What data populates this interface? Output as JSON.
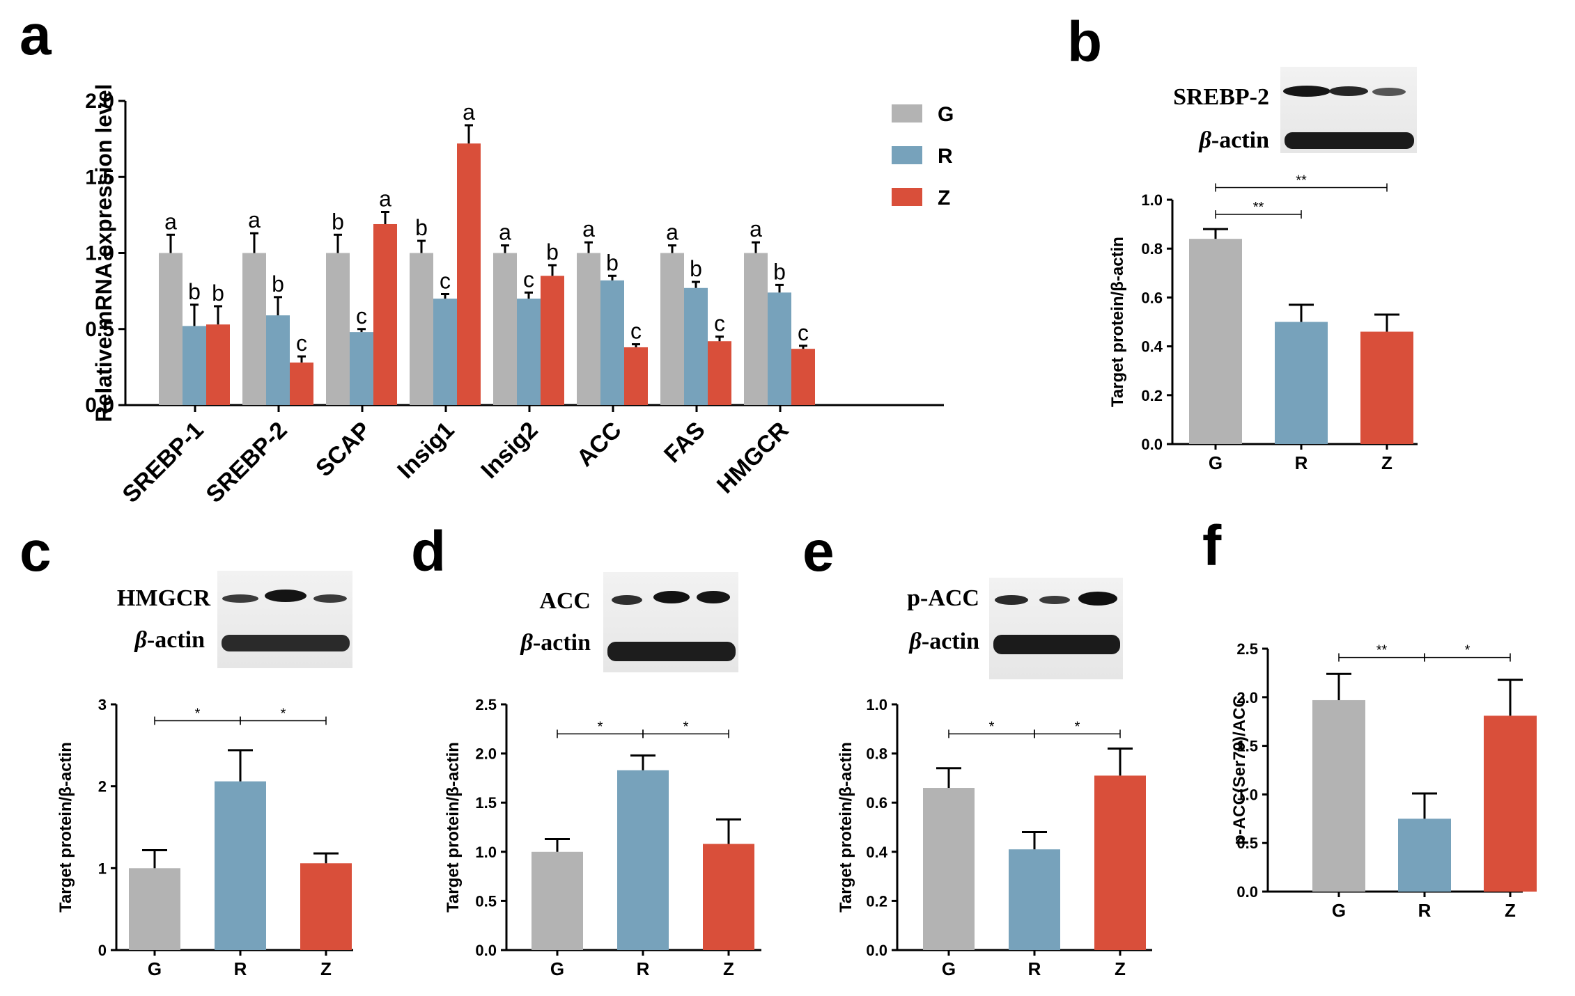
{
  "colors": {
    "G": "#b3b3b3",
    "R": "#77a2bb",
    "Z": "#d94f3a"
  },
  "panels": {
    "a": {
      "letter": "a"
    },
    "b": {
      "letter": "b"
    },
    "c": {
      "letter": "c"
    },
    "d": {
      "letter": "d"
    },
    "e": {
      "letter": "e"
    },
    "f": {
      "letter": "f"
    }
  },
  "blots": {
    "b": {
      "target": "SREBP-2",
      "ref_prefix": "β",
      "ref_suffix": "-actin"
    },
    "c": {
      "target": "HMGCR",
      "ref_prefix": "β",
      "ref_suffix": "-actin"
    },
    "d": {
      "target": "ACC",
      "ref_prefix": "β",
      "ref_suffix": "-actin"
    },
    "e": {
      "target": "p-ACC",
      "ref_prefix": "β",
      "ref_suffix": "-actin"
    }
  },
  "chart_data": [
    {
      "id": "a",
      "type": "bar",
      "ylabel": "Relative mRNA expression level",
      "ylim": [
        0,
        2.0
      ],
      "yticks": [
        "0.0",
        "0.5",
        "1.0",
        "1.5",
        "2.0"
      ],
      "categories": [
        "SREBP-1",
        "SREBP-2",
        "SCAP",
        "Insig1",
        "Insig2",
        "ACC",
        "FAS",
        "HMGCR"
      ],
      "legend": [
        "G",
        "R",
        "Z"
      ],
      "series": [
        {
          "name": "G",
          "values": [
            1.0,
            1.0,
            1.0,
            1.0,
            1.0,
            1.0,
            1.0,
            1.0
          ],
          "errors": [
            0.12,
            0.13,
            0.12,
            0.08,
            0.05,
            0.07,
            0.05,
            0.07
          ],
          "labels": [
            "a",
            "a",
            "b",
            "b",
            "a",
            "a",
            "a",
            "a"
          ]
        },
        {
          "name": "R",
          "values": [
            0.52,
            0.59,
            0.48,
            0.7,
            0.7,
            0.82,
            0.77,
            0.74
          ],
          "errors": [
            0.14,
            0.12,
            0.02,
            0.03,
            0.04,
            0.03,
            0.04,
            0.05
          ],
          "labels": [
            "b",
            "b",
            "c",
            "c",
            "c",
            "b",
            "b",
            "b"
          ]
        },
        {
          "name": "Z",
          "values": [
            0.53,
            0.28,
            1.19,
            1.72,
            0.85,
            0.38,
            0.42,
            0.37
          ],
          "errors": [
            0.12,
            0.04,
            0.08,
            0.12,
            0.07,
            0.02,
            0.03,
            0.02
          ],
          "labels": [
            "b",
            "c",
            "a",
            "a",
            "b",
            "c",
            "c",
            "c"
          ]
        }
      ]
    },
    {
      "id": "b",
      "type": "bar",
      "ylabel": "Target protein/β-actin",
      "ylim": [
        0,
        1.0
      ],
      "yticks": [
        "0.0",
        "0.2",
        "0.4",
        "0.6",
        "0.8",
        "1.0"
      ],
      "categories": [
        "G",
        "R",
        "Z"
      ],
      "values": [
        0.84,
        0.5,
        0.46
      ],
      "errors": [
        0.04,
        0.07,
        0.07
      ],
      "comparisons": [
        {
          "from": 0,
          "to": 1,
          "label": "**",
          "y": 0.94
        },
        {
          "from": 0,
          "to": 2,
          "label": "**",
          "y": 1.05
        }
      ]
    },
    {
      "id": "c",
      "type": "bar",
      "ylabel": "Target protein/β-actin",
      "ylim": [
        0,
        3
      ],
      "yticks": [
        "0",
        "1",
        "2",
        "3"
      ],
      "categories": [
        "G",
        "R",
        "Z"
      ],
      "values": [
        1.0,
        2.06,
        1.06
      ],
      "errors": [
        0.22,
        0.38,
        0.12
      ],
      "comparisons": [
        {
          "from": 0,
          "to": 1,
          "label": "*",
          "y": 2.8
        },
        {
          "from": 1,
          "to": 2,
          "label": "*",
          "y": 2.8
        }
      ]
    },
    {
      "id": "d",
      "type": "bar",
      "ylabel": "Target protein/β-actin",
      "ylim": [
        0,
        2.5
      ],
      "yticks": [
        "0.0",
        "0.5",
        "1.0",
        "1.5",
        "2.0",
        "2.5"
      ],
      "categories": [
        "G",
        "R",
        "Z"
      ],
      "values": [
        1.0,
        1.83,
        1.08
      ],
      "errors": [
        0.13,
        0.15,
        0.25
      ],
      "comparisons": [
        {
          "from": 0,
          "to": 1,
          "label": "*",
          "y": 2.2
        },
        {
          "from": 1,
          "to": 2,
          "label": "*",
          "y": 2.2
        }
      ]
    },
    {
      "id": "e",
      "type": "bar",
      "ylabel": "Target protein/β-actin",
      "ylim": [
        0,
        1.0
      ],
      "yticks": [
        "0.0",
        "0.2",
        "0.4",
        "0.6",
        "0.8",
        "1.0"
      ],
      "categories": [
        "G",
        "R",
        "Z"
      ],
      "values": [
        0.66,
        0.41,
        0.71
      ],
      "errors": [
        0.08,
        0.07,
        0.11
      ],
      "comparisons": [
        {
          "from": 0,
          "to": 1,
          "label": "*",
          "y": 0.88
        },
        {
          "from": 1,
          "to": 2,
          "label": "*",
          "y": 0.88
        }
      ]
    },
    {
      "id": "f",
      "type": "bar",
      "ylabel": "p-ACC(Ser79)/ACC",
      "ylim": [
        0,
        2.5
      ],
      "yticks": [
        "0.0",
        "0.5",
        "1.0",
        "1.5",
        "2.0",
        "2.5"
      ],
      "categories": [
        "G",
        "R",
        "Z"
      ],
      "values": [
        1.97,
        0.75,
        1.81
      ],
      "errors": [
        0.27,
        0.26,
        0.37
      ],
      "comparisons": [
        {
          "from": 0,
          "to": 1,
          "label": "**",
          "y": 2.41
        },
        {
          "from": 1,
          "to": 2,
          "label": "*",
          "y": 2.41
        }
      ]
    }
  ]
}
